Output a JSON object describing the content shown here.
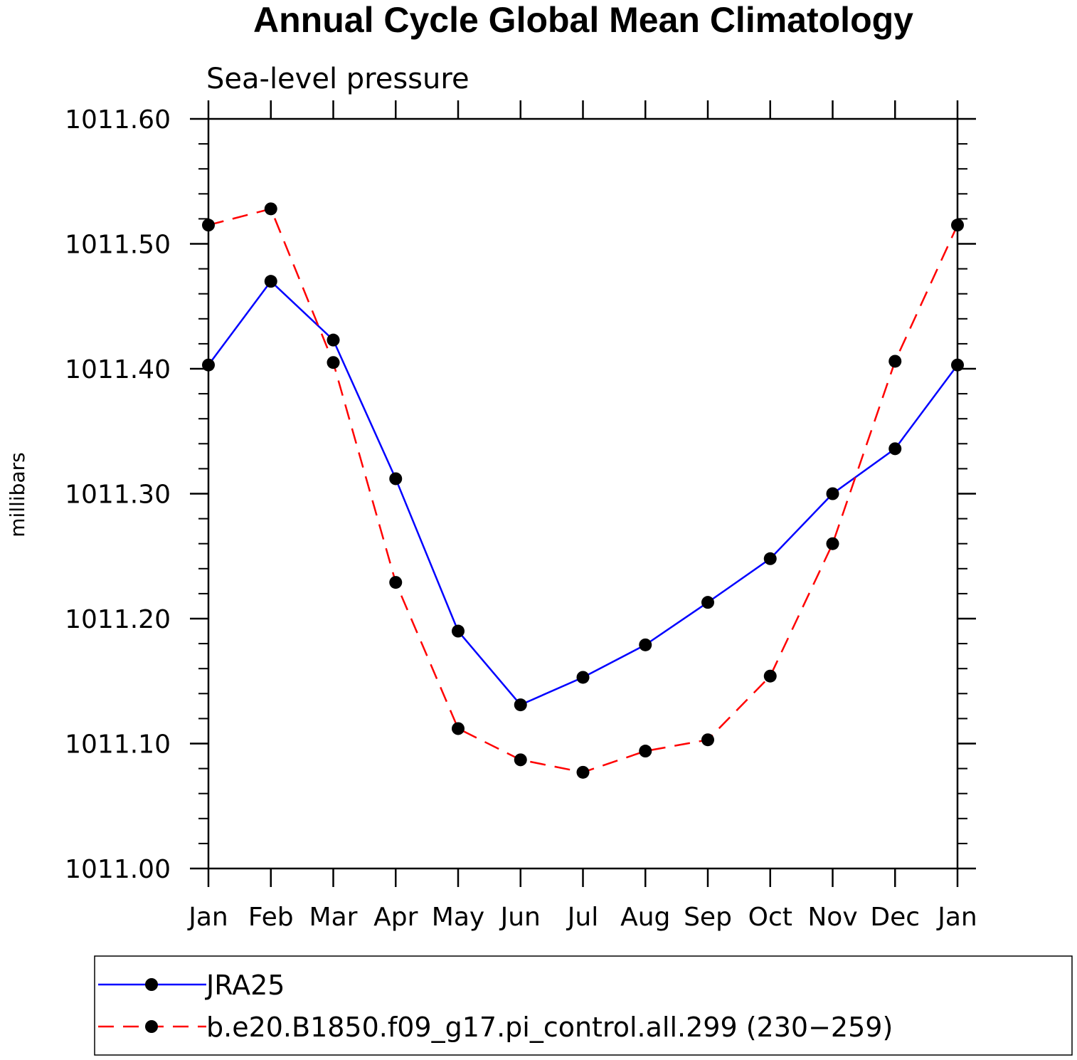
{
  "chart_data": {
    "type": "line",
    "title": "Annual Cycle Global Mean Climatology",
    "subtitle": "Sea-level pressure",
    "ylabel": "millibars",
    "xlabel": "",
    "categories": [
      "Jan",
      "Feb",
      "Mar",
      "Apr",
      "May",
      "Jun",
      "Jul",
      "Aug",
      "Sep",
      "Oct",
      "Nov",
      "Dec",
      "Jan"
    ],
    "ylim": [
      1011.0,
      1011.6
    ],
    "yticks": [
      "1011.00",
      "1011.10",
      "1011.20",
      "1011.30",
      "1011.40",
      "1011.50",
      "1011.60"
    ],
    "grid": false,
    "legend_position": "bottom",
    "series": [
      {
        "name": "JRA25",
        "color": "#0000ff",
        "line_style": "solid",
        "marker": "filled-circle",
        "values": [
          1011.403,
          1011.47,
          1011.423,
          1011.312,
          1011.19,
          1011.131,
          1011.153,
          1011.179,
          1011.213,
          1011.248,
          1011.3,
          1011.336,
          1011.403
        ]
      },
      {
        "name": "b.e20.B1850.f09_g17.pi_control.all.299 (230−259)",
        "color": "#ff0000",
        "line_style": "dashed",
        "marker": "filled-circle",
        "values": [
          1011.515,
          1011.528,
          1011.405,
          1011.229,
          1011.112,
          1011.087,
          1011.077,
          1011.094,
          1011.103,
          1011.154,
          1011.26,
          1011.406,
          1011.515
        ]
      }
    ]
  }
}
